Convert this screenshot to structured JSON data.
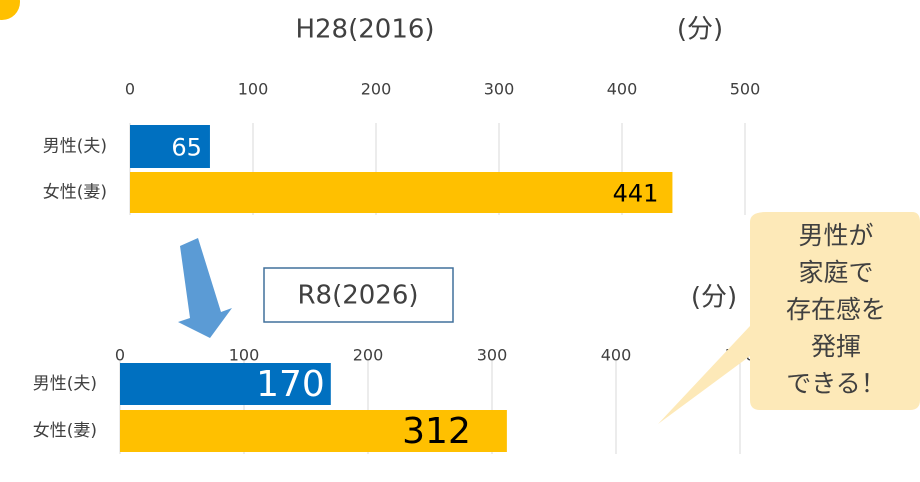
{
  "chart_data": [
    {
      "type": "bar",
      "orientation": "horizontal",
      "title": "H28(2016)",
      "unit": "(分)",
      "categories": [
        "男性(夫)",
        "女性(妻)"
      ],
      "values": [
        65,
        441
      ],
      "colors": [
        "#0070c0",
        "#ffc000"
      ],
      "label_colors": [
        "#ffffff",
        "#000000"
      ],
      "xlim": [
        0,
        500
      ],
      "xticks": [
        0,
        100,
        200,
        300,
        400,
        500
      ],
      "grid": true
    },
    {
      "type": "bar",
      "orientation": "horizontal",
      "title": "R8(2026)",
      "unit": "(分)",
      "categories": [
        "男性(夫)",
        "女性(妻)"
      ],
      "values": [
        170,
        312
      ],
      "colors": [
        "#0070c0",
        "#ffc000"
      ],
      "label_colors": [
        "#ffffff",
        "#000000"
      ],
      "xlim": [
        0,
        500
      ],
      "xticks": [
        0,
        100,
        200,
        300,
        400,
        500
      ],
      "grid": true
    }
  ],
  "callout": {
    "lines": [
      "男性が",
      "家庭で",
      "存在感を",
      "発揮",
      "できる！"
    ]
  }
}
